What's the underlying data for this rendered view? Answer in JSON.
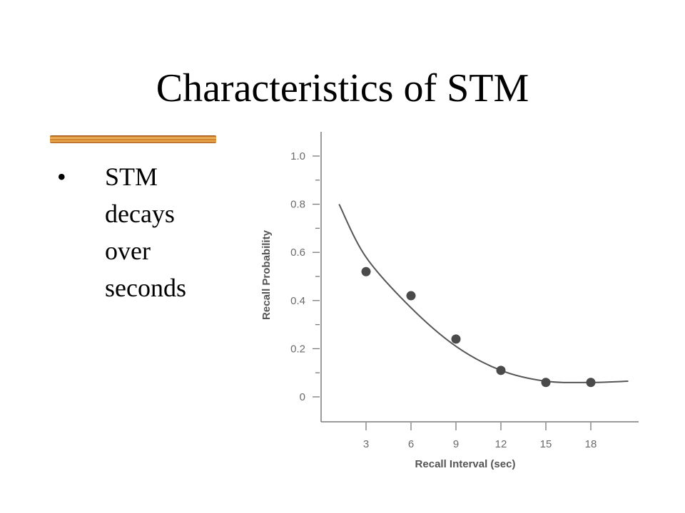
{
  "slide": {
    "title": "Characteristics of STM",
    "bullet_marker": "•",
    "bullet_text": "STM decays over seconds"
  },
  "colors": {
    "rule_accent": "#d8882c",
    "axis": "#7a7a7a",
    "curve": "#555555",
    "points": "#4a4a4a"
  },
  "chart_data": {
    "type": "scatter",
    "xlabel": "Recall Interval (sec)",
    "ylabel": "Recall Probability",
    "x_ticks": [
      3,
      6,
      9,
      12,
      15,
      18
    ],
    "y_ticks": [
      "1.0",
      "0.8",
      "0.6",
      "0.4",
      "0.2",
      "0"
    ],
    "xlim": [
      0,
      21.5
    ],
    "ylim": [
      -0.12,
      1.1
    ],
    "series": [
      {
        "kind": "points",
        "x": [
          3,
          6,
          9,
          12,
          15,
          18
        ],
        "y": [
          0.52,
          0.42,
          0.24,
          0.11,
          0.06,
          0.06
        ]
      },
      {
        "kind": "fitted-curve",
        "x": [
          1.2,
          3,
          6,
          9,
          12,
          15,
          18,
          20.5
        ],
        "y": [
          0.8,
          0.58,
          0.37,
          0.21,
          0.11,
          0.065,
          0.06,
          0.065
        ]
      }
    ],
    "grid": false,
    "legend": "none"
  }
}
